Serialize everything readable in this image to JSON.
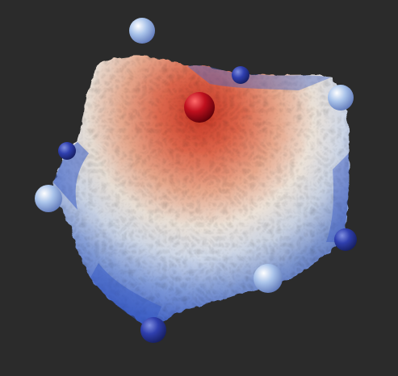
{
  "viewport": {
    "background": "#2b2b2b"
  },
  "colormap": {
    "name": "cool-to-warm",
    "low": "#3b5cc4",
    "mid": "#ece9e4",
    "high": "#c8311f"
  },
  "peak_marker": {
    "color": "#c0101e"
  },
  "control_points": {
    "light_color": "#a9c3ea",
    "dark_color": "#2f3fae"
  }
}
